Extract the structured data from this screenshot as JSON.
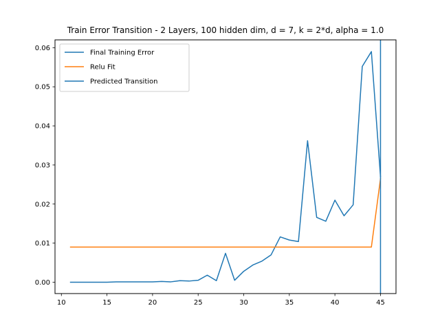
{
  "chart_data": {
    "type": "line",
    "title": "Train Error Transition - 2 Layers, 100 hidden dim, d = 7, k = 2*d, alpha = 1.0",
    "xlabel": "",
    "ylabel": "",
    "xlim": [
      9.3,
      46.7
    ],
    "ylim": [
      -0.0029,
      0.062
    ],
    "xticks": [
      10,
      15,
      20,
      25,
      30,
      35,
      40,
      45
    ],
    "yticks": [
      0.0,
      0.01,
      0.02,
      0.03,
      0.04,
      0.05,
      0.06
    ],
    "ytick_labels": [
      "0.00",
      "0.01",
      "0.02",
      "0.03",
      "0.04",
      "0.05",
      "0.06"
    ],
    "legend_position": "upper-left",
    "grid": false,
    "series": [
      {
        "name": "Final Training Error",
        "color": "#1f77b4",
        "x": [
          11,
          12,
          13,
          14,
          15,
          16,
          17,
          18,
          19,
          20,
          21,
          22,
          23,
          24,
          25,
          26,
          27,
          28,
          29,
          30,
          31,
          32,
          33,
          34,
          35,
          36,
          37,
          38,
          39,
          40,
          41,
          42,
          43,
          44,
          45
        ],
        "y": [
          0.0,
          0.0,
          0.0,
          0.0,
          0.0,
          0.0001,
          0.0001,
          0.0001,
          0.0001,
          0.0001,
          0.0002,
          0.0001,
          0.0004,
          0.0003,
          0.0005,
          0.0018,
          0.0004,
          0.0074,
          0.0005,
          0.0028,
          0.0044,
          0.0054,
          0.007,
          0.0116,
          0.0108,
          0.0104,
          0.0362,
          0.0166,
          0.0156,
          0.021,
          0.017,
          0.0198,
          0.0552,
          0.059,
          0.027
        ]
      },
      {
        "name": "Relu Fit",
        "color": "#ff7f0e",
        "x": [
          11,
          44,
          45
        ],
        "y": [
          0.009,
          0.009,
          0.0265
        ]
      }
    ],
    "vline": {
      "name": "Predicted Transition",
      "color": "#1f77b4",
      "x": 45
    }
  }
}
